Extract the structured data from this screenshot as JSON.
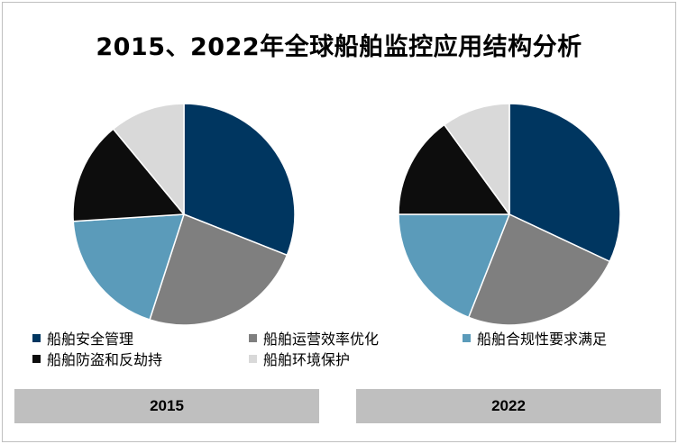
{
  "title": "2015、2022年全球船舶监控应用结构分析",
  "colors": {
    "safety": "#003660",
    "efficiency": "#7f7f7f",
    "compliance": "#5b9bba",
    "piracy": "#0d0d0d",
    "environment": "#d9d9d9"
  },
  "chart_data": {
    "type": "pie",
    "title": "2015、2022年全球船舶监控应用结构分析",
    "legend": {
      "position": "bottom",
      "entries": [
        "船舶安全管理",
        "船舶运营效率优化",
        "船舶合规性要求满足",
        "船舶防盗和反劫持",
        "船舶环境保护"
      ]
    },
    "charts": [
      {
        "label": "2015",
        "slices": [
          {
            "name": "船舶安全管理",
            "value": 31,
            "color": "#003660"
          },
          {
            "name": "船舶运营效率优化",
            "value": 24,
            "color": "#7f7f7f"
          },
          {
            "name": "船舶合规性要求满足",
            "value": 19,
            "color": "#5b9bba"
          },
          {
            "name": "船舶防盗和反劫持",
            "value": 15,
            "color": "#0d0d0d"
          },
          {
            "name": "船舶环境保护",
            "value": 11,
            "color": "#d9d9d9"
          }
        ]
      },
      {
        "label": "2022",
        "slices": [
          {
            "name": "船舶安全管理",
            "value": 32,
            "color": "#003660"
          },
          {
            "name": "船舶运营效率优化",
            "value": 24,
            "color": "#7f7f7f"
          },
          {
            "name": "船舶合规性要求满足",
            "value": 19,
            "color": "#5b9bba"
          },
          {
            "name": "船舶防盗和反劫持",
            "value": 15,
            "color": "#0d0d0d"
          },
          {
            "name": "船舶环境保护",
            "value": 10,
            "color": "#d9d9d9"
          }
        ]
      }
    ]
  }
}
